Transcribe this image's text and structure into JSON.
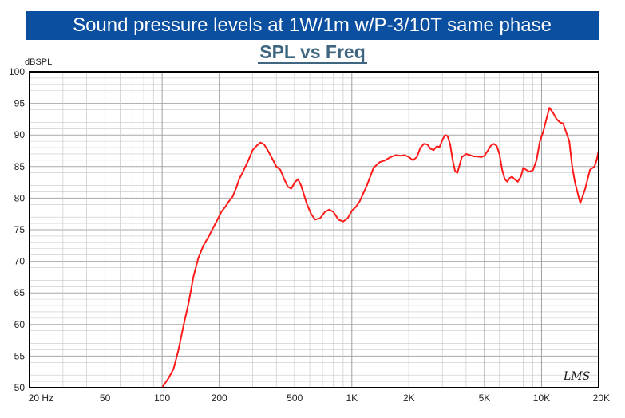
{
  "banner": "Sound pressure levels at 1W/1m w/P-3/10T same phase",
  "colors": {
    "banner_bg": "#0b4fa0",
    "curve": "#ff1a1a",
    "title": "#3f6680",
    "grid": "#c8c8c8",
    "frame": "#000000"
  },
  "chart_data": {
    "type": "line",
    "title": "SPL vs Freq",
    "ylabel": "dBSPL",
    "xlabel": "",
    "x_scale": "log",
    "xlim": [
      20,
      20000
    ],
    "ylim": [
      50,
      100
    ],
    "grid": true,
    "x_tick_labels": [
      {
        "value": 20,
        "label": "20 Hz"
      },
      {
        "value": 50,
        "label": "50"
      },
      {
        "value": 100,
        "label": "100"
      },
      {
        "value": 200,
        "label": "200"
      },
      {
        "value": 500,
        "label": "500"
      },
      {
        "value": 1000,
        "label": "1K"
      },
      {
        "value": 2000,
        "label": "2K"
      },
      {
        "value": 5000,
        "label": "5K"
      },
      {
        "value": 10000,
        "label": "10K"
      },
      {
        "value": 20000,
        "label": "20K"
      }
    ],
    "y_ticks": [
      50,
      55,
      60,
      65,
      70,
      75,
      80,
      85,
      90,
      95,
      100
    ],
    "watermark": "LMS",
    "series": [
      {
        "color": "#ff1a1a",
        "x": [
          28,
          50,
          85,
          100,
          108,
          115,
          122,
          130,
          138,
          146,
          155,
          165,
          175,
          185,
          195,
          205,
          215,
          225,
          235,
          245,
          255,
          270,
          285,
          300,
          315,
          330,
          345,
          360,
          380,
          400,
          420,
          440,
          460,
          480,
          500,
          520,
          540,
          560,
          580,
          610,
          640,
          680,
          720,
          760,
          800,
          850,
          900,
          950,
          1000,
          1050,
          1100,
          1200,
          1300,
          1400,
          1500,
          1600,
          1700,
          1800,
          1900,
          2000,
          2100,
          2200,
          2300,
          2400,
          2500,
          2600,
          2700,
          2800,
          2900,
          3000,
          3100,
          3200,
          3300,
          3400,
          3500,
          3600,
          3800,
          4000,
          4200,
          4400,
          4600,
          4800,
          5000,
          5200,
          5400,
          5600,
          5800,
          6000,
          6200,
          6400,
          6600,
          6800,
          7000,
          7200,
          7500,
          7800,
          8000,
          8300,
          8600,
          9000,
          9400,
          9800,
          10200,
          10600,
          11000,
          11500,
          12000,
          12500,
          13000,
          14000,
          14500,
          15000,
          15500,
          16000,
          17000,
          18000,
          19000,
          19500,
          20000
        ],
        "y": [
          50,
          50,
          50,
          50,
          51.5,
          53,
          56,
          60,
          63.5,
          67.5,
          70.5,
          72.5,
          73.8,
          75.2,
          76.5,
          77.8,
          78.6,
          79.5,
          80.2,
          81.5,
          83,
          84.5,
          86,
          87.6,
          88.3,
          88.8,
          88.5,
          87.6,
          86.3,
          85,
          84.5,
          83,
          81.8,
          81.5,
          82.5,
          83,
          82,
          80.5,
          79,
          77.5,
          76.6,
          76.8,
          77.8,
          78.2,
          77.8,
          76.6,
          76.3,
          76.8,
          78,
          78.6,
          79.5,
          82,
          84.8,
          85.7,
          86,
          86.5,
          86.8,
          86.7,
          86.8,
          86.5,
          86,
          86.5,
          88,
          88.6,
          88.5,
          87.8,
          87.6,
          88.2,
          88.1,
          89.2,
          90,
          89.8,
          88.5,
          86,
          84.3,
          84,
          86.5,
          87,
          86.8,
          86.6,
          86.6,
          86.5,
          86.7,
          87.5,
          88.3,
          88.6,
          88.3,
          87,
          84.5,
          83,
          82.6,
          83.2,
          83.4,
          83,
          82.6,
          83.5,
          84.8,
          84.5,
          84.2,
          84.4,
          86,
          89,
          90.5,
          92.5,
          94.3,
          93.5,
          92.5,
          92,
          91.8,
          89,
          85,
          82.5,
          80.8,
          79.2,
          81.5,
          84.5,
          85,
          86,
          87.5
        ]
      }
    ]
  }
}
